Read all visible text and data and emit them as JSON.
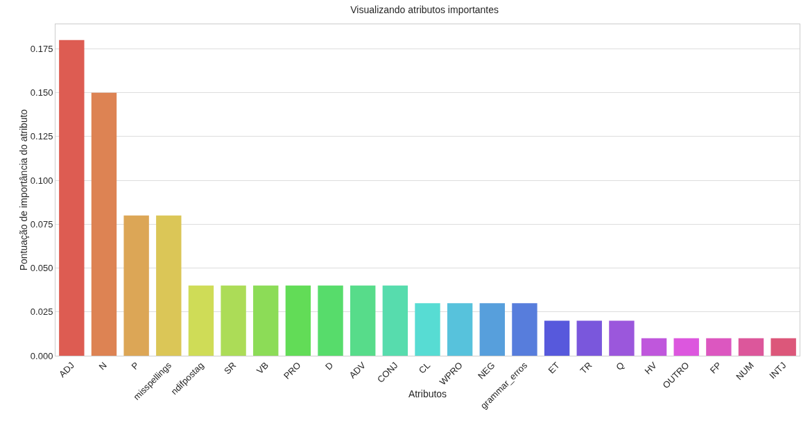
{
  "chart_data": {
    "type": "bar",
    "title": "Visualizando atributos importantes",
    "xlabel": "Atributos",
    "ylabel": "Pontuação de importância do atributo",
    "categories": [
      "ADJ",
      "N",
      "P",
      "misspellings",
      "ndifpostag",
      "SR",
      "VB",
      "PRO",
      "D",
      "ADV",
      "CONJ",
      "CL",
      "WPRO",
      "NEG",
      "grammar_erros",
      "ET",
      "TR",
      "Q",
      "HV",
      "OUTRO",
      "FP",
      "NUM",
      "INTJ"
    ],
    "values": [
      0.18,
      0.15,
      0.08,
      0.08,
      0.04,
      0.04,
      0.04,
      0.04,
      0.04,
      0.04,
      0.04,
      0.03,
      0.03,
      0.03,
      0.03,
      0.02,
      0.02,
      0.02,
      0.01,
      0.01,
      0.01,
      0.01,
      0.01
    ],
    "colors": [
      "#dd5c52",
      "#dd8353",
      "#dca656",
      "#dbc657",
      "#cfdc57",
      "#acdc57",
      "#8cdc57",
      "#62dc57",
      "#57dc6b",
      "#57dc8a",
      "#57dcad",
      "#57dcd3",
      "#57c2dc",
      "#579fdc",
      "#577ddc",
      "#5759dc",
      "#7a57dc",
      "#9b57dc",
      "#bf57dc",
      "#dc57de",
      "#dc57c0",
      "#dc579b",
      "#dc577a"
    ],
    "ylim": [
      0,
      0.189
    ],
    "yticks": [
      {
        "value": 0,
        "label": "0.000"
      },
      {
        "value": 0.025,
        "label": "0.025"
      },
      {
        "value": 0.05,
        "label": "0.050"
      },
      {
        "value": 0.075,
        "label": "0.075"
      },
      {
        "value": 0.1,
        "label": "0.100"
      },
      {
        "value": 0.125,
        "label": "0.125"
      },
      {
        "value": 0.15,
        "label": "0.150"
      },
      {
        "value": 0.175,
        "label": "0.175"
      }
    ],
    "grid": "y"
  }
}
